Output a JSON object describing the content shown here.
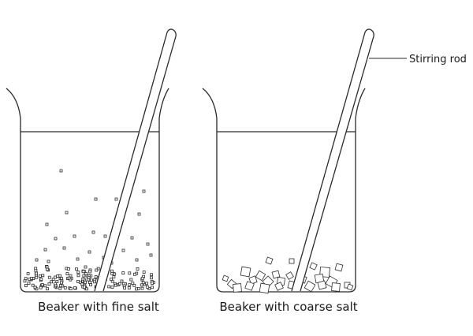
{
  "diagram": {
    "beakers": [
      {
        "caption": "Beaker with fine salt"
      },
      {
        "caption": "Beaker with coarse salt"
      }
    ],
    "callout_label": "Stirring rod",
    "colors": {
      "line": "#2a2a2a",
      "background": "#ffffff"
    }
  }
}
